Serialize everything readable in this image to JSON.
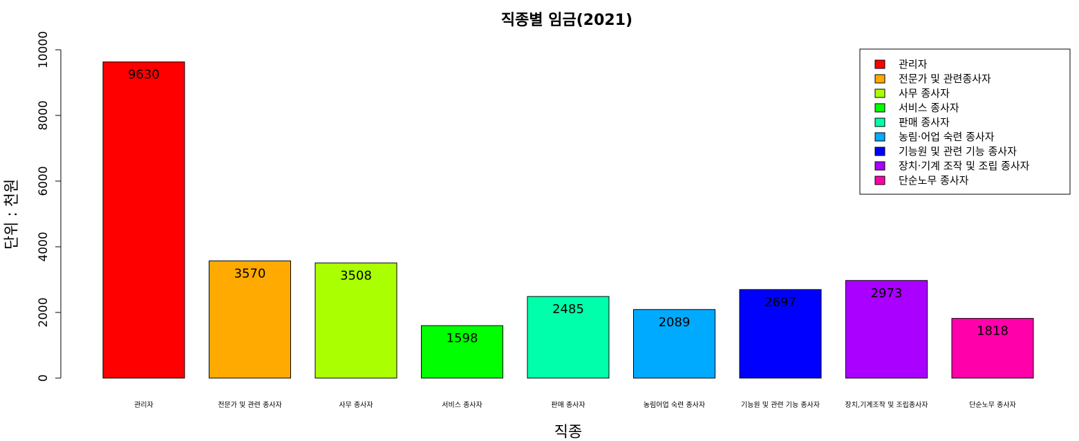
{
  "chart_data": {
    "type": "bar",
    "title": "직종별 임금(2021)",
    "xlabel": "직종",
    "ylabel": "단위 : 천원",
    "ylim": [
      0,
      10000
    ],
    "yticks": [
      "0",
      "2000",
      "4000",
      "6000",
      "8000",
      "10000"
    ],
    "categories": [
      "관리자",
      "전문가 및 관련 종사자",
      "사무 종사자",
      "서비스 종사자",
      "판매 종사자",
      "농림어업 숙련 종사자",
      "기능원 및 관련 기능 종사자",
      "장치,기계조작 및 조립종사자",
      "단순노무 종사자"
    ],
    "values": [
      9630,
      3570,
      3508,
      1598,
      2485,
      2089,
      2697,
      2973,
      1818
    ],
    "colors": [
      "#FF0000",
      "#FFAA00",
      "#AAFF00",
      "#00FF00",
      "#00FFAA",
      "#00AAFF",
      "#0000FF",
      "#AA00FF",
      "#FF00AA"
    ],
    "legend": {
      "position": "top-right",
      "entries": [
        "관리자",
        "전문가 및 관련종사자",
        "사무 종사자",
        "서비스 종사자",
        "판매 종사자",
        "농림·어업 숙련 종사자",
        "기능원 및 관련 기능 종사자",
        "장치·기계 조작 및 조립 종사자",
        "단순노무 종사자"
      ]
    },
    "grid": false
  }
}
